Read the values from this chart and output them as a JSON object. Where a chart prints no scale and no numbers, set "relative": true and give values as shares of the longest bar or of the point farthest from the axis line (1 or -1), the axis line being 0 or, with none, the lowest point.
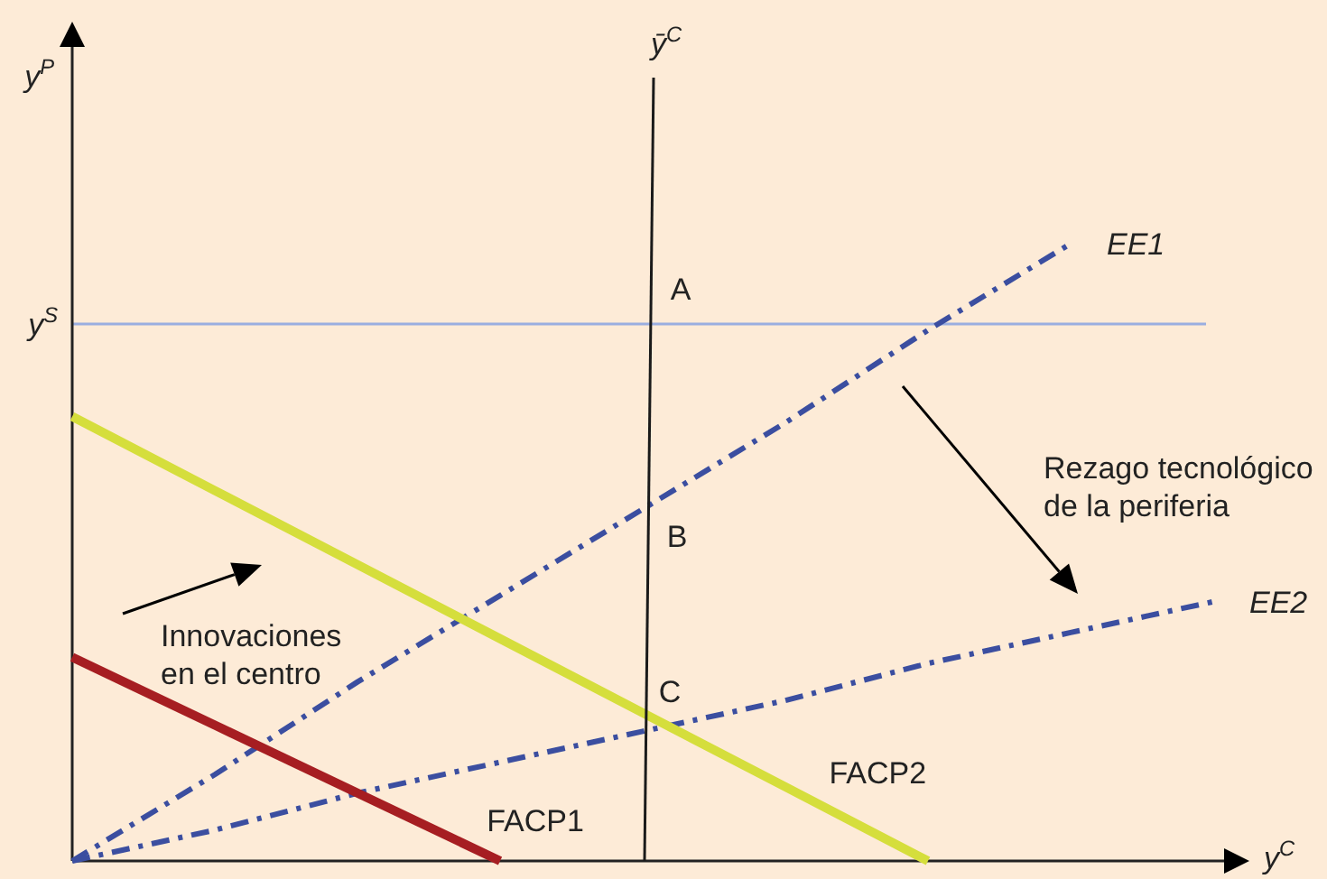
{
  "chart_data": {
    "type": "line",
    "relative": true,
    "xlabel": "y$^{C}$",
    "ylabel": "y$^{P}$",
    "categories": [
      null,
      null,
      null,
      null,
      null,
      null,
      null,
      null,
      null
    ],
    "series": [
      {
        "name": "EE1",
        "color": "#3b4ea0",
        "line_style": "dashdot",
        "values": [
          0,
          0.14,
          0.29,
          0.43,
          0.57,
          0.71,
          0.86,
          1,
          null
        ]
      },
      {
        "name": "EE2",
        "color": "#3b4ea0",
        "line_style": "dashdot",
        "values": [
          0,
          0.05,
          0.11,
          0.16,
          0.21,
          0.26,
          0.32,
          0.37,
          0.42
        ]
      },
      {
        "name": "FACP1",
        "color": "#a61e22",
        "line_style": "solid",
        "values": [
          0.33,
          0.22,
          0.11,
          0,
          null,
          null,
          null,
          null,
          null
        ]
      },
      {
        "name": "FACP2",
        "color": "#d5de3c",
        "line_style": "solid",
        "values": [
          0.72,
          0.6,
          0.48,
          0.36,
          0.24,
          0.12,
          0,
          null,
          null
        ]
      }
    ],
    "ref_lines": [
      {
        "axis": "y",
        "value": 0.87,
        "label": "y$^{S}$",
        "color": "#9aaee0"
      }
    ],
    "annotations": [
      "ȳ$^{C}$",
      "Innovaciones\nen el centro",
      "Rezago tecnológico\nde la periferia",
      "A",
      "B",
      "C"
    ]
  }
}
